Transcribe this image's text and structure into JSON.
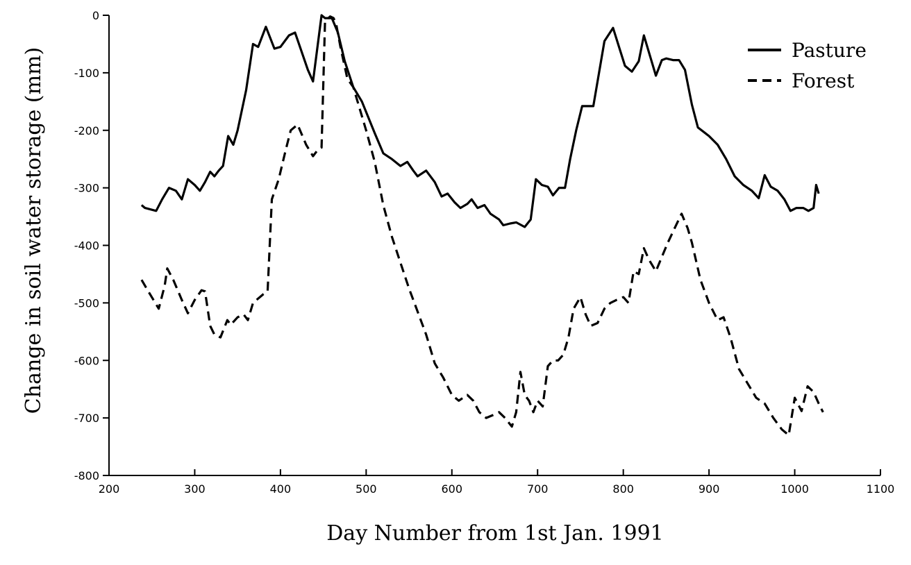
{
  "chart_data": {
    "type": "line",
    "title": "",
    "xlabel": "Day Number from 1st Jan. 1991",
    "ylabel": "Change in soil water storage (mm)",
    "xlim": [
      200,
      1100
    ],
    "ylim": [
      -800,
      0
    ],
    "xticks": [
      200,
      300,
      400,
      500,
      600,
      700,
      800,
      900,
      1000,
      1100
    ],
    "yticks": [
      0,
      -100,
      -200,
      -300,
      -400,
      -500,
      -600,
      -700,
      -800
    ],
    "grid": false,
    "legend_position": "top-right",
    "series": [
      {
        "name": "Pasture",
        "style": "solid",
        "color": "#000000",
        "points": [
          [
            238,
            -330
          ],
          [
            242,
            -335
          ],
          [
            255,
            -340
          ],
          [
            262,
            -320
          ],
          [
            270,
            -300
          ],
          [
            278,
            -305
          ],
          [
            285,
            -320
          ],
          [
            292,
            -285
          ],
          [
            300,
            -295
          ],
          [
            306,
            -305
          ],
          [
            312,
            -290
          ],
          [
            318,
            -272
          ],
          [
            323,
            -280
          ],
          [
            328,
            -270
          ],
          [
            333,
            -262
          ],
          [
            339,
            -210
          ],
          [
            345,
            -225
          ],
          [
            350,
            -200
          ],
          [
            360,
            -130
          ],
          [
            368,
            -50
          ],
          [
            374,
            -55
          ],
          [
            383,
            -20
          ],
          [
            393,
            -58
          ],
          [
            400,
            -55
          ],
          [
            410,
            -35
          ],
          [
            417,
            -30
          ],
          [
            432,
            -95
          ],
          [
            438,
            -115
          ],
          [
            448,
            0
          ],
          [
            452,
            -5
          ],
          [
            460,
            -5
          ],
          [
            467,
            -30
          ],
          [
            475,
            -80
          ],
          [
            485,
            -125
          ],
          [
            495,
            -150
          ],
          [
            510,
            -205
          ],
          [
            520,
            -240
          ],
          [
            530,
            -250
          ],
          [
            540,
            -262
          ],
          [
            548,
            -255
          ],
          [
            555,
            -270
          ],
          [
            560,
            -280
          ],
          [
            570,
            -270
          ],
          [
            580,
            -290
          ],
          [
            588,
            -315
          ],
          [
            595,
            -310
          ],
          [
            603,
            -325
          ],
          [
            610,
            -335
          ],
          [
            618,
            -328
          ],
          [
            623,
            -320
          ],
          [
            630,
            -335
          ],
          [
            638,
            -330
          ],
          [
            645,
            -345
          ],
          [
            655,
            -355
          ],
          [
            660,
            -365
          ],
          [
            668,
            -362
          ],
          [
            675,
            -360
          ],
          [
            685,
            -368
          ],
          [
            692,
            -355
          ],
          [
            698,
            -285
          ],
          [
            705,
            -295
          ],
          [
            712,
            -298
          ],
          [
            718,
            -313
          ],
          [
            725,
            -300
          ],
          [
            732,
            -300
          ],
          [
            738,
            -250
          ],
          [
            745,
            -200
          ],
          [
            752,
            -158
          ],
          [
            765,
            -158
          ],
          [
            778,
            -45
          ],
          [
            788,
            -22
          ],
          [
            795,
            -55
          ],
          [
            802,
            -88
          ],
          [
            810,
            -98
          ],
          [
            818,
            -80
          ],
          [
            824,
            -35
          ],
          [
            832,
            -75
          ],
          [
            838,
            -105
          ],
          [
            845,
            -78
          ],
          [
            850,
            -75
          ],
          [
            858,
            -78
          ],
          [
            865,
            -78
          ],
          [
            872,
            -95
          ],
          [
            880,
            -155
          ],
          [
            887,
            -195
          ],
          [
            900,
            -210
          ],
          [
            910,
            -225
          ],
          [
            920,
            -250
          ],
          [
            930,
            -280
          ],
          [
            940,
            -295
          ],
          [
            950,
            -305
          ],
          [
            958,
            -318
          ],
          [
            965,
            -278
          ],
          [
            972,
            -298
          ],
          [
            980,
            -305
          ],
          [
            988,
            -320
          ],
          [
            995,
            -340
          ],
          [
            1002,
            -335
          ],
          [
            1010,
            -335
          ],
          [
            1016,
            -340
          ],
          [
            1022,
            -335
          ],
          [
            1025,
            -295
          ],
          [
            1028,
            -310
          ]
        ]
      },
      {
        "name": "Forest",
        "style": "dashed",
        "color": "#000000",
        "points": [
          [
            238,
            -460
          ],
          [
            245,
            -478
          ],
          [
            258,
            -510
          ],
          [
            265,
            -470
          ],
          [
            268,
            -440
          ],
          [
            275,
            -460
          ],
          [
            285,
            -495
          ],
          [
            292,
            -518
          ],
          [
            300,
            -495
          ],
          [
            308,
            -478
          ],
          [
            312,
            -480
          ],
          [
            318,
            -540
          ],
          [
            323,
            -555
          ],
          [
            330,
            -560
          ],
          [
            338,
            -530
          ],
          [
            342,
            -538
          ],
          [
            350,
            -525
          ],
          [
            357,
            -520
          ],
          [
            362,
            -530
          ],
          [
            368,
            -500
          ],
          [
            380,
            -485
          ],
          [
            385,
            -480
          ],
          [
            390,
            -320
          ],
          [
            398,
            -285
          ],
          [
            406,
            -235
          ],
          [
            412,
            -200
          ],
          [
            420,
            -190
          ],
          [
            430,
            -225
          ],
          [
            438,
            -245
          ],
          [
            443,
            -235
          ],
          [
            448,
            -230
          ],
          [
            452,
            -10
          ],
          [
            458,
            -2
          ],
          [
            462,
            -5
          ],
          [
            465,
            -15
          ],
          [
            470,
            -55
          ],
          [
            478,
            -110
          ],
          [
            485,
            -125
          ],
          [
            500,
            -200
          ],
          [
            510,
            -255
          ],
          [
            520,
            -330
          ],
          [
            530,
            -385
          ],
          [
            540,
            -430
          ],
          [
            550,
            -475
          ],
          [
            560,
            -515
          ],
          [
            570,
            -555
          ],
          [
            580,
            -605
          ],
          [
            590,
            -630
          ],
          [
            600,
            -660
          ],
          [
            608,
            -670
          ],
          [
            618,
            -660
          ],
          [
            625,
            -670
          ],
          [
            632,
            -690
          ],
          [
            640,
            -700
          ],
          [
            648,
            -695
          ],
          [
            655,
            -690
          ],
          [
            662,
            -700
          ],
          [
            670,
            -715
          ],
          [
            675,
            -690
          ],
          [
            680,
            -620
          ],
          [
            685,
            -660
          ],
          [
            690,
            -670
          ],
          [
            695,
            -690
          ],
          [
            700,
            -670
          ],
          [
            706,
            -680
          ],
          [
            712,
            -610
          ],
          [
            718,
            -600
          ],
          [
            724,
            -600
          ],
          [
            730,
            -590
          ],
          [
            736,
            -560
          ],
          [
            742,
            -510
          ],
          [
            750,
            -490
          ],
          [
            756,
            -520
          ],
          [
            762,
            -540
          ],
          [
            770,
            -535
          ],
          [
            778,
            -510
          ],
          [
            785,
            -500
          ],
          [
            792,
            -495
          ],
          [
            800,
            -490
          ],
          [
            806,
            -500
          ],
          [
            812,
            -445
          ],
          [
            818,
            -450
          ],
          [
            824,
            -405
          ],
          [
            830,
            -425
          ],
          [
            838,
            -445
          ],
          [
            845,
            -420
          ],
          [
            852,
            -395
          ],
          [
            860,
            -370
          ],
          [
            868,
            -345
          ],
          [
            875,
            -370
          ],
          [
            880,
            -395
          ],
          [
            890,
            -460
          ],
          [
            900,
            -500
          ],
          [
            910,
            -530
          ],
          [
            917,
            -525
          ],
          [
            925,
            -560
          ],
          [
            935,
            -615
          ],
          [
            945,
            -640
          ],
          [
            955,
            -665
          ],
          [
            965,
            -675
          ],
          [
            975,
            -700
          ],
          [
            985,
            -720
          ],
          [
            993,
            -730
          ],
          [
            1000,
            -665
          ],
          [
            1008,
            -688
          ],
          [
            1015,
            -645
          ],
          [
            1022,
            -655
          ],
          [
            1028,
            -675
          ],
          [
            1033,
            -690
          ]
        ]
      }
    ]
  }
}
